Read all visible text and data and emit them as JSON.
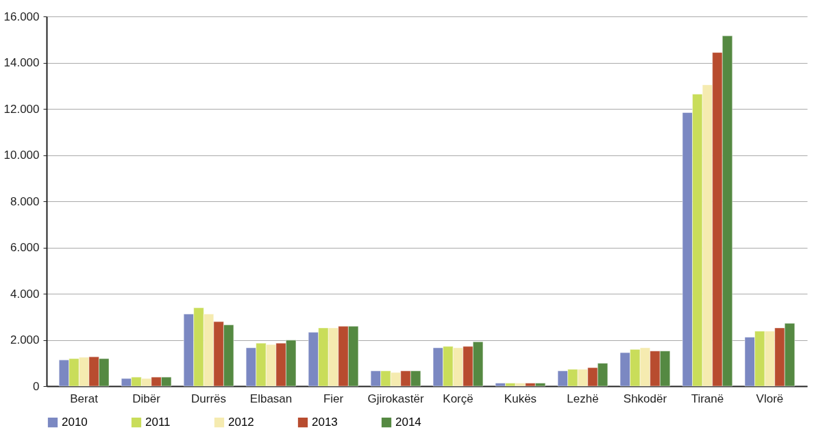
{
  "chart_data": {
    "type": "bar",
    "categories": [
      "Berat",
      "Dibër",
      "Durrës",
      "Elbasan",
      "Fier",
      "Gjirokastër",
      "Korçë",
      "Kukës",
      "Lezhë",
      "Shkodër",
      "Tiranë",
      "Vlorë"
    ],
    "series": [
      {
        "name": "2010",
        "color": "#7b88c2",
        "values": [
          1130,
          330,
          3120,
          1660,
          2330,
          660,
          1660,
          130,
          660,
          1450,
          11840,
          2120
        ]
      },
      {
        "name": "2011",
        "color": "#c9dd5a",
        "values": [
          1190,
          390,
          3390,
          1860,
          2520,
          660,
          1720,
          130,
          730,
          1590,
          12640,
          2380
        ]
      },
      {
        "name": "2012",
        "color": "#f5ebb0",
        "values": [
          1250,
          330,
          3120,
          1800,
          2520,
          590,
          1660,
          130,
          730,
          1660,
          13040,
          2380
        ]
      },
      {
        "name": "2013",
        "color": "#b84c2f",
        "values": [
          1270,
          390,
          2790,
          1860,
          2590,
          660,
          1720,
          130,
          800,
          1520,
          14440,
          2520
        ]
      },
      {
        "name": "2014",
        "color": "#558942",
        "values": [
          1190,
          390,
          2650,
          1990,
          2590,
          660,
          1920,
          130,
          990,
          1520,
          15160,
          2720
        ]
      }
    ],
    "ylim": [
      0,
      16000
    ],
    "yticks": [
      {
        "value": 0,
        "label": "0"
      },
      {
        "value": 2000,
        "label": "2.000"
      },
      {
        "value": 4000,
        "label": "4.000"
      },
      {
        "value": 6000,
        "label": "6.000"
      },
      {
        "value": 8000,
        "label": "8.000"
      },
      {
        "value": 10000,
        "label": "10.000"
      },
      {
        "value": 12000,
        "label": "12.000"
      },
      {
        "value": 14000,
        "label": "14.000"
      },
      {
        "value": 16000,
        "label": "16.000"
      }
    ],
    "grid": "y",
    "legend": "bottom"
  }
}
